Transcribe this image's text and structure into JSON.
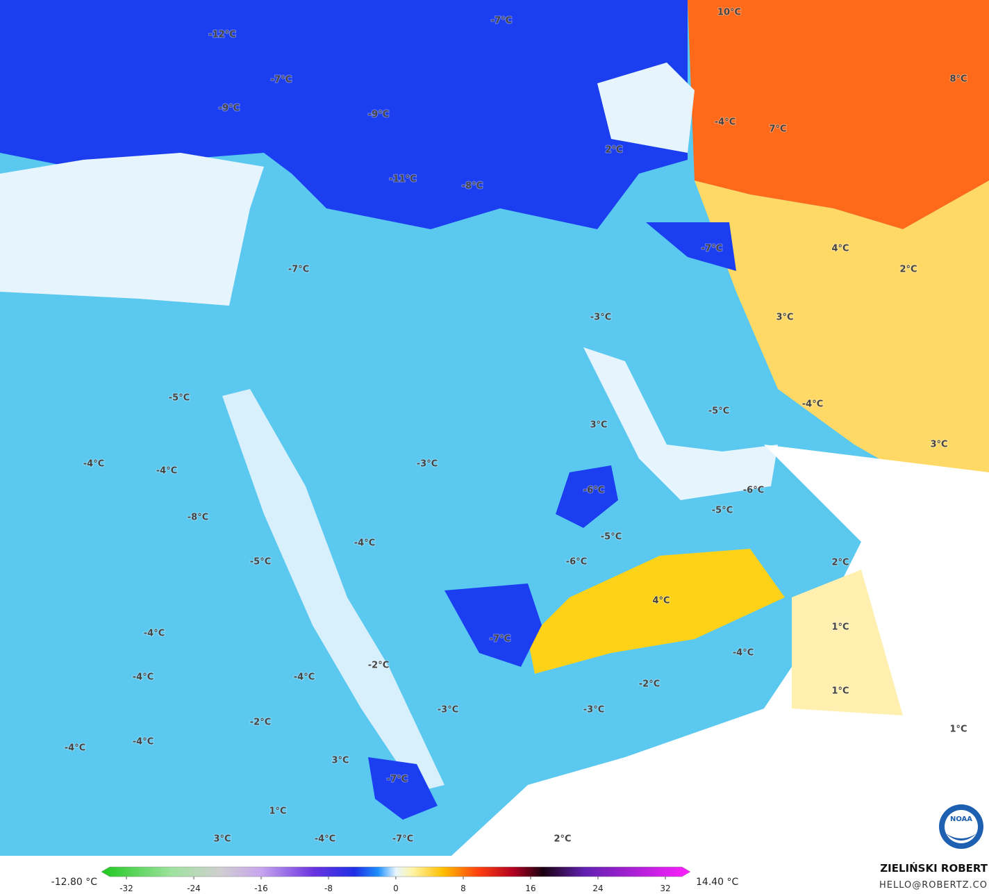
{
  "map": {
    "labels": [
      "-12°C",
      "-7°C",
      "10°C",
      "-7°C",
      "-9°C",
      "-9°C",
      "-11°C",
      "-8°C",
      "2°C",
      "-4°C",
      "7°C",
      "8°C",
      "-7°C",
      "4°C",
      "2°C",
      "-7°C",
      "-3°C",
      "3°C",
      "-5°C",
      "-4°C",
      "-5°C",
      "3°C",
      "3°C",
      "-4°C",
      "-4°C",
      "-3°C",
      "-6°C",
      "-6°C",
      "-5°C",
      "-8°C",
      "-5°C",
      "-4°C",
      "-5°C",
      "-6°C",
      "2°C",
      "4°C",
      "1°C",
      "-4°C",
      "-7°C",
      "-4°C",
      "-4°C",
      "-2°C",
      "-4°C",
      "-2°C",
      "1°C",
      "-3°C",
      "-3°C",
      "-2°C",
      "1°C",
      "-4°C",
      "-4°C",
      "3°C",
      "-7°C",
      "1°C",
      "3°C",
      "-4°C",
      "-7°C",
      "2°C"
    ]
  },
  "colorbar": {
    "min_label": "-12.80 °C",
    "max_label": "14.40 °C",
    "ticks": [
      -32,
      -24,
      -16,
      -8,
      0,
      8,
      16,
      24,
      32
    ]
  },
  "credit": {
    "name": "ZIELIŃSKI ROBERT",
    "email": "HELLO@ROBERTZ.CO"
  },
  "logo": "NOAA"
}
